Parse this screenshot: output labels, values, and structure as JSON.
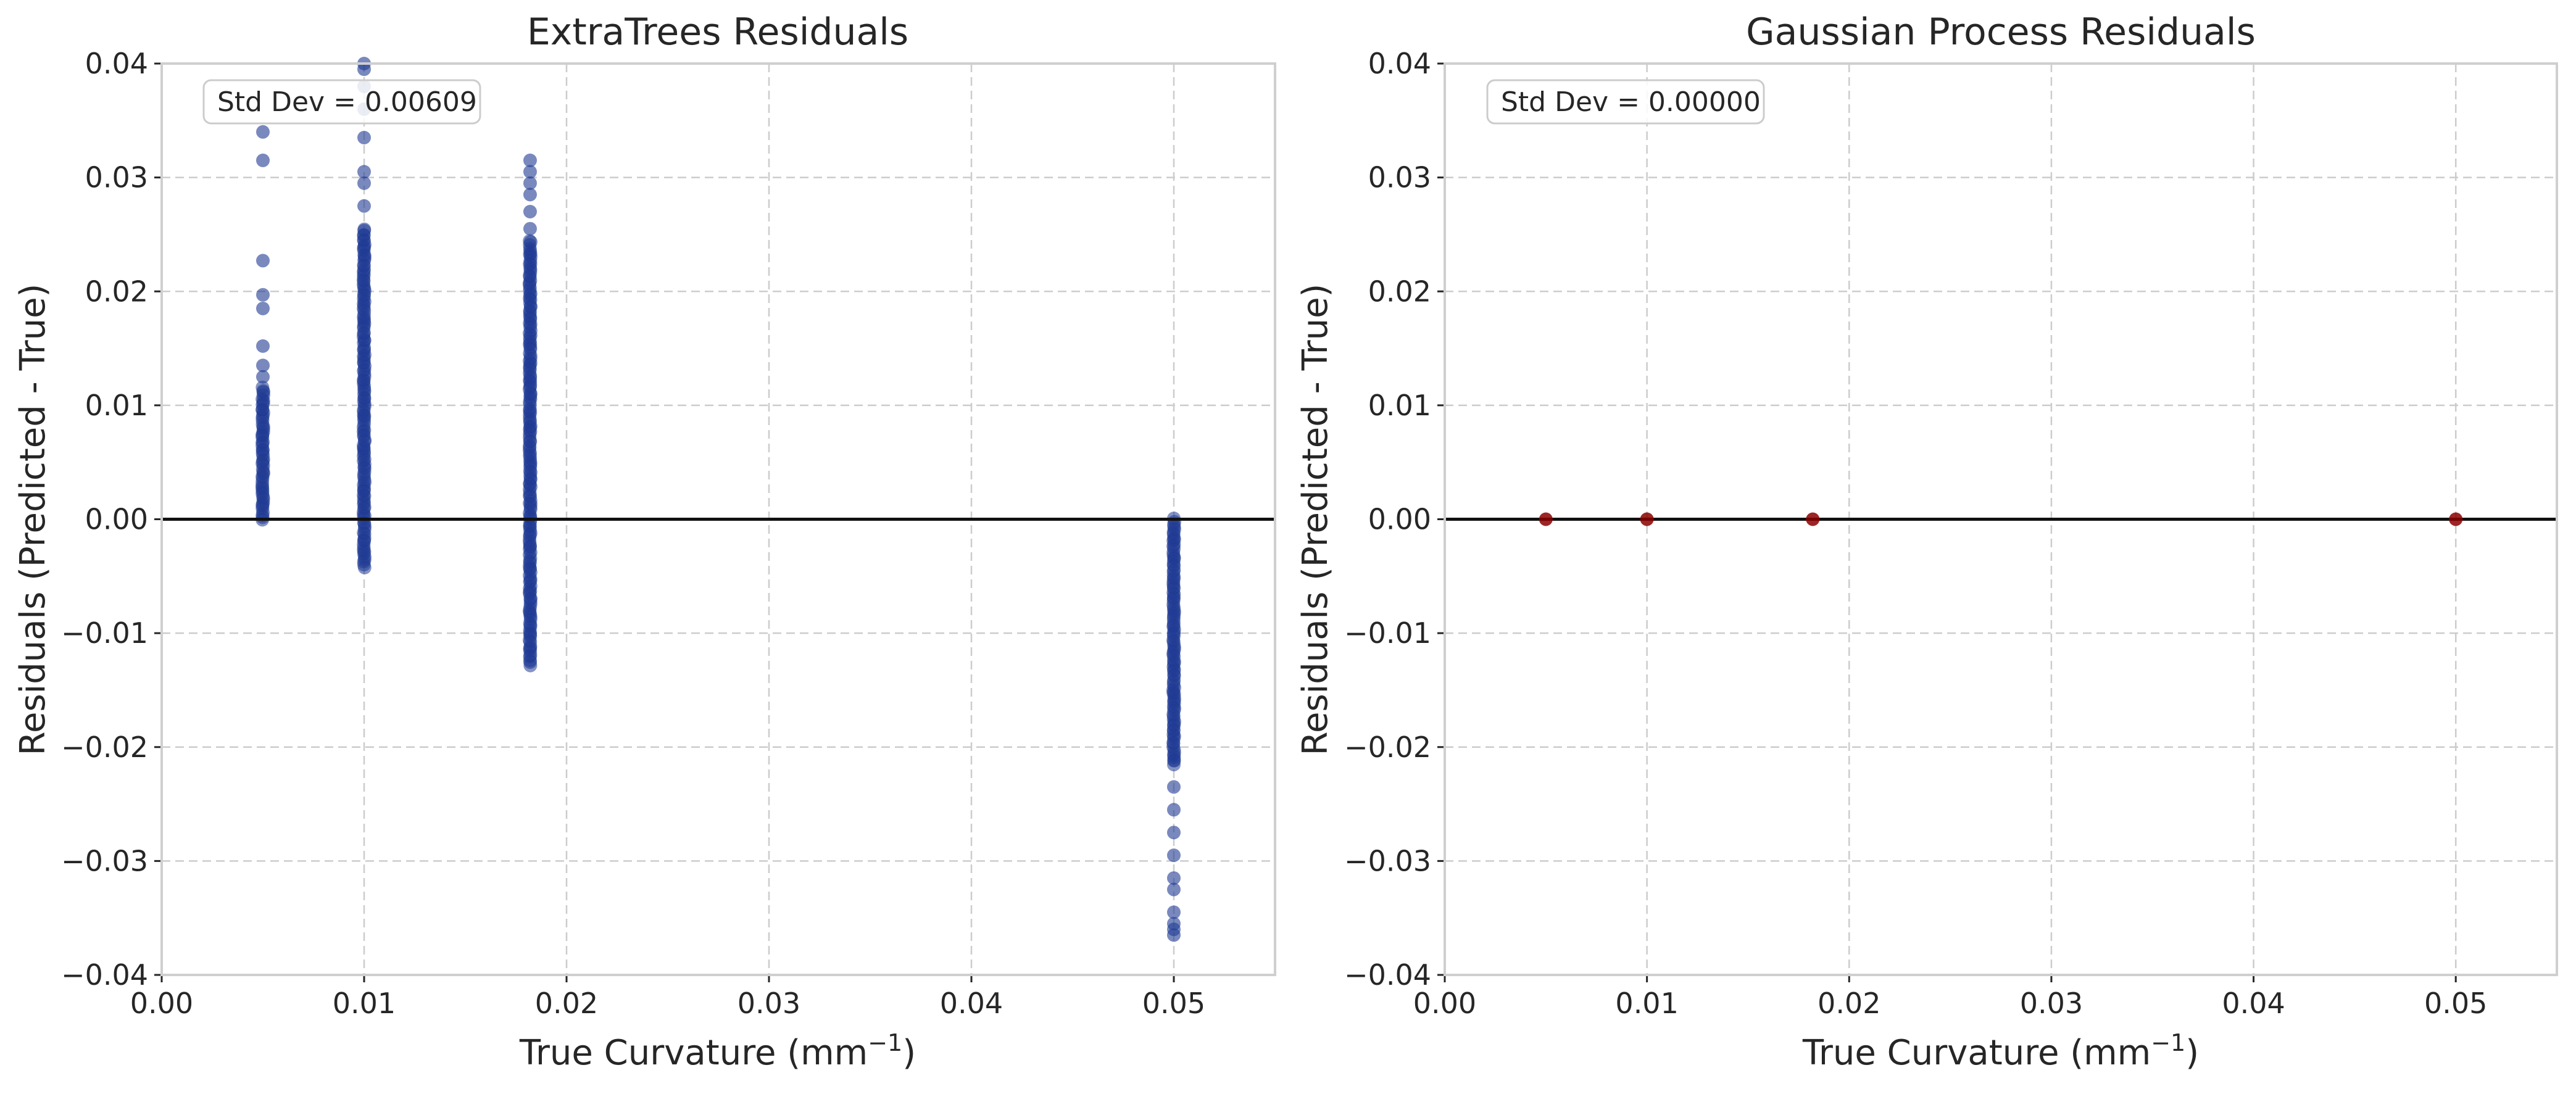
{
  "colors": {
    "extratrees_points": "#1f3a93",
    "gaussian_points": "#8b0000",
    "zero_line": "#111111",
    "grid": "#cccccc"
  },
  "chart_data": [
    {
      "type": "scatter",
      "title": "ExtraTrees Residuals",
      "xlabel": "True Curvature (mm",
      "xlabel_sup": "−1",
      "xlabel_close": ")",
      "ylabel": "Residuals (Predicted - True)",
      "xlim": [
        0.0,
        0.055
      ],
      "ylim": [
        -0.04,
        0.04
      ],
      "xticks": [
        0.0,
        0.01,
        0.02,
        0.03,
        0.04,
        0.05
      ],
      "xtick_labels": [
        "0.00",
        "0.01",
        "0.02",
        "0.03",
        "0.04",
        "0.05"
      ],
      "yticks": [
        -0.04,
        -0.03,
        -0.02,
        -0.01,
        0.0,
        0.01,
        0.02,
        0.03,
        0.04
      ],
      "ytick_labels": [
        "−0.04",
        "−0.03",
        "−0.02",
        "−0.01",
        "0.00",
        "0.01",
        "0.02",
        "0.03",
        "0.04"
      ],
      "grid": true,
      "reference_line_y": 0.0,
      "annotation": "Std Dev = 0.00609",
      "annotation_position": "top-left",
      "point_color": "#1f3a93",
      "clusters": [
        {
          "x": 0.005,
          "dense_range": [
            0.0,
            0.0115
          ],
          "outliers": [
            0.0125,
            0.0135,
            0.0152,
            0.0185,
            0.0197,
            0.0227,
            0.0315,
            0.034
          ]
        },
        {
          "x": 0.01,
          "dense_range": [
            -0.0042,
            0.0255
          ],
          "outliers": [
            0.0275,
            0.0295,
            0.0305,
            0.0335,
            0.036,
            0.038,
            0.0395,
            0.04
          ]
        },
        {
          "x": 0.0182,
          "dense_range": [
            -0.0128,
            0.0245
          ],
          "outliers": [
            0.0255,
            0.027,
            0.0285,
            0.0295,
            0.0305,
            0.0315
          ]
        },
        {
          "x": 0.05,
          "dense_range": [
            -0.0215,
            0.0
          ],
          "outliers": [
            -0.0235,
            -0.0255,
            -0.0275,
            -0.0295,
            -0.0315,
            -0.0325,
            -0.0345,
            -0.0355,
            -0.036,
            -0.0365
          ]
        }
      ]
    },
    {
      "type": "scatter",
      "title": "Gaussian Process Residuals",
      "xlabel": "True Curvature (mm",
      "xlabel_sup": "−1",
      "xlabel_close": ")",
      "ylabel": "Residuals (Predicted - True)",
      "xlim": [
        0.0,
        0.055
      ],
      "ylim": [
        -0.04,
        0.04
      ],
      "xticks": [
        0.0,
        0.01,
        0.02,
        0.03,
        0.04,
        0.05
      ],
      "xtick_labels": [
        "0.00",
        "0.01",
        "0.02",
        "0.03",
        "0.04",
        "0.05"
      ],
      "yticks": [
        -0.04,
        -0.03,
        -0.02,
        -0.01,
        0.0,
        0.01,
        0.02,
        0.03,
        0.04
      ],
      "ytick_labels": [
        "−0.04",
        "−0.03",
        "−0.02",
        "−0.01",
        "0.00",
        "0.01",
        "0.02",
        "0.03",
        "0.04"
      ],
      "grid": true,
      "reference_line_y": 0.0,
      "annotation": "Std Dev = 0.00000",
      "annotation_position": "top-left",
      "point_color": "#8b0000",
      "points": [
        {
          "x": 0.005,
          "y": 0.0
        },
        {
          "x": 0.01,
          "y": 0.0
        },
        {
          "x": 0.0182,
          "y": 0.0
        },
        {
          "x": 0.05,
          "y": 0.0
        }
      ]
    }
  ]
}
